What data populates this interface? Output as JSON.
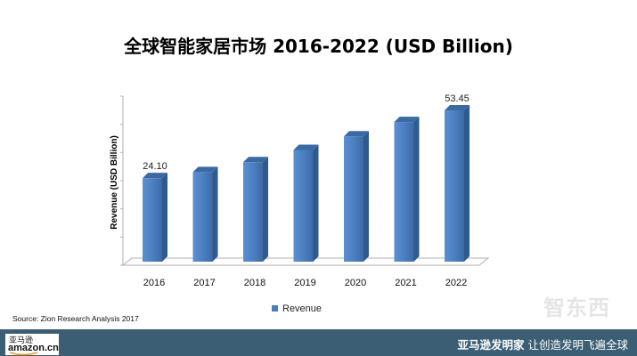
{
  "chart_data": {
    "type": "bar",
    "title": "全球智能家居市场 2016-2022 (USD Billion)",
    "ylabel": "Revenue (USD Billion)",
    "xlabel": "",
    "categories": [
      "2016",
      "2017",
      "2018",
      "2019",
      "2020",
      "2021",
      "2022"
    ],
    "series": [
      {
        "name": "Revenue",
        "values": [
          24.1,
          26.7,
          31.0,
          36.3,
          42.2,
          48.4,
          53.45
        ],
        "color": "#4a7ebf"
      }
    ],
    "data_labels": {
      "2016": "24.10",
      "2022": "53.45"
    },
    "ylim": [
      0,
      60
    ],
    "grid": false,
    "legend": "bottom",
    "three_d": true
  },
  "source_note": "Source: Zion Research Analysis 2017",
  "footer": {
    "brand": "亚马逊发明家",
    "slogan": "让创造发明飞遍全球",
    "logo_cn": "亚马逊",
    "logo_en": "amazon.cn",
    "bar_color": "#3c5e75"
  },
  "watermark": "智东西"
}
